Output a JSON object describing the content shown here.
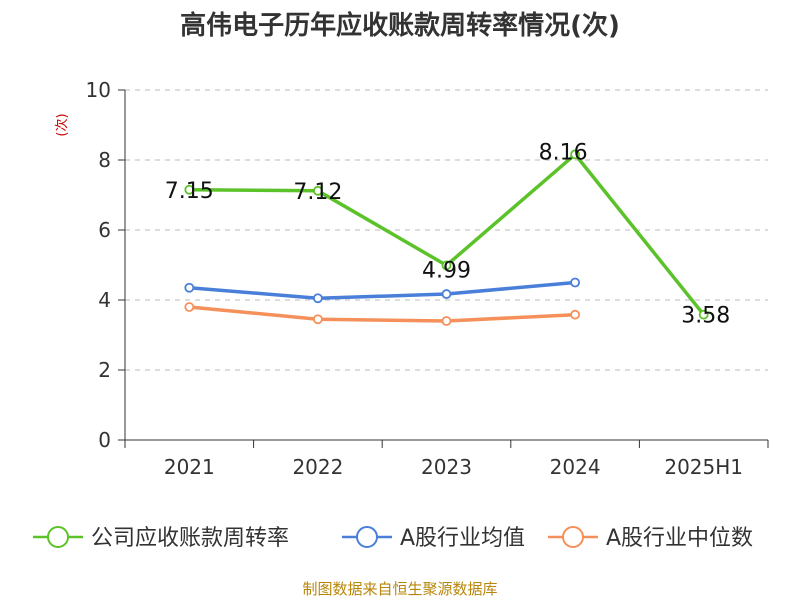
{
  "chart_data": {
    "type": "line",
    "title": "高伟电子历年应收账款周转率情况(次)",
    "ylabel": "(次)",
    "xlabel": "",
    "categories": [
      "2021",
      "2022",
      "2023",
      "2024",
      "2025H1"
    ],
    "ylim": [
      0,
      10
    ],
    "yticks": [
      0,
      2,
      4,
      6,
      8,
      10
    ],
    "grid": true,
    "legend_position": "bottom",
    "series": [
      {
        "name": "公司应收账款周转率",
        "color": "#5cc229",
        "values": [
          7.15,
          7.12,
          4.99,
          8.16,
          3.58
        ],
        "labels": [
          "7.15",
          "7.12",
          "4.99",
          "8.16",
          "3.58"
        ]
      },
      {
        "name": "A股行业均值",
        "color": "#4a7fd9",
        "values": [
          4.35,
          4.05,
          4.17,
          4.5,
          null
        ]
      },
      {
        "name": "A股行业中位数",
        "color": "#f5905a",
        "values": [
          3.8,
          3.45,
          3.4,
          3.58,
          null
        ]
      }
    ]
  },
  "source": "制图数据来自恒生聚源数据库"
}
